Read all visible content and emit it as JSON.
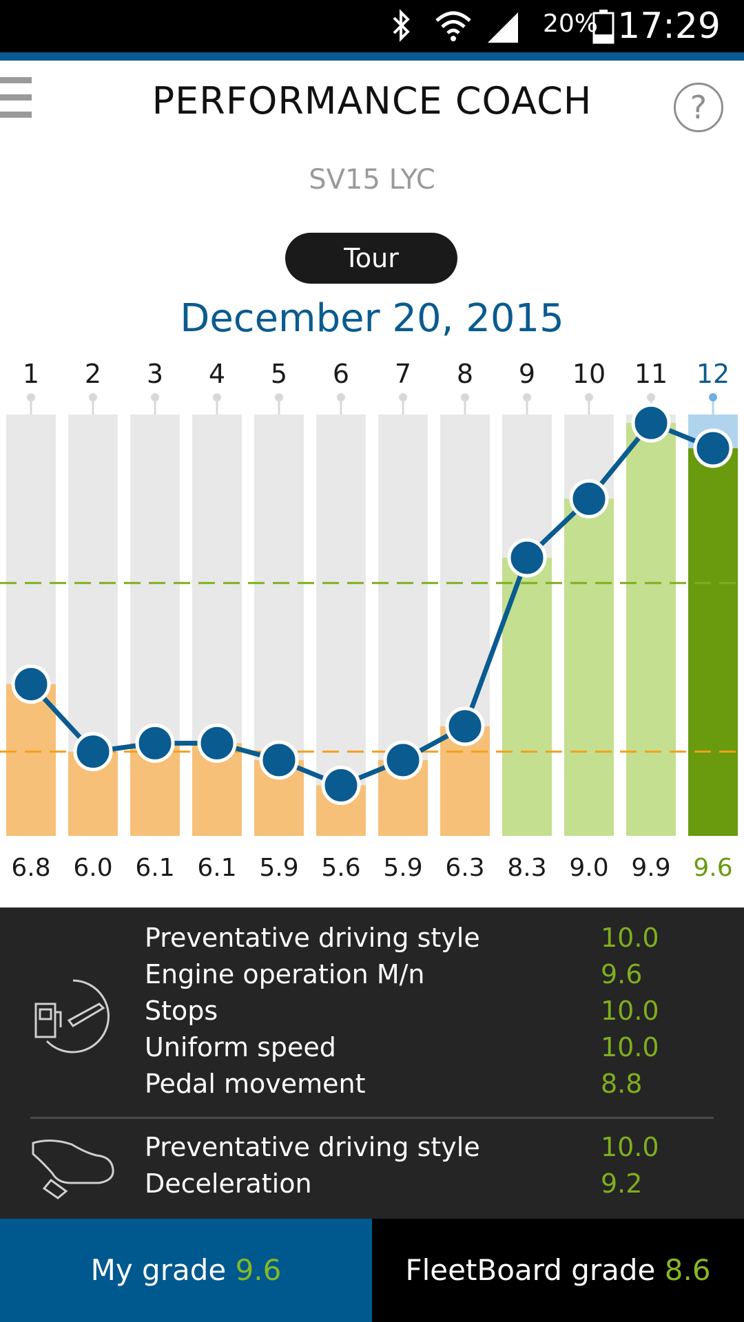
{
  "status_bar": {
    "battery": "20%",
    "time": "17:29",
    "icons": [
      "bluetooth-icon",
      "wifi-icon",
      "signal-icon",
      "battery-icon"
    ]
  },
  "header": {
    "title": "PERFORMANCE COACH",
    "menu_icon": "hamburger-menu-icon",
    "help_icon": "help-icon",
    "help_glyph": "?"
  },
  "vehicle": "SV15 LYC",
  "tour_button": "Tour",
  "date": "December 20, 2015",
  "chart_data": {
    "type": "bar",
    "categories": [
      "1",
      "2",
      "3",
      "4",
      "5",
      "6",
      "7",
      "8",
      "9",
      "10",
      "11",
      "12"
    ],
    "values": [
      6.8,
      6.0,
      6.1,
      6.1,
      5.9,
      5.6,
      5.9,
      6.3,
      8.3,
      9.0,
      9.9,
      9.6
    ],
    "value_labels": [
      "6.8",
      "6.0",
      "6.1",
      "6.1",
      "5.9",
      "5.6",
      "5.9",
      "6.3",
      "8.3",
      "9.0",
      "9.9",
      "9.6"
    ],
    "line_overlay": true,
    "selected_index": 11,
    "reference_lines": [
      8.0,
      6.0
    ],
    "ylim": [
      5.0,
      10.0
    ],
    "colors": {
      "background_bar": "#e8e8e8",
      "low_bar": "#f6c078",
      "high_bar": "#c4df8f",
      "selected_bar": "#6a9a0e",
      "selected_background": "#b0d4ee",
      "line": "#0a5b8f",
      "upper_reference": "#7fae1e",
      "lower_reference": "#f3a01c",
      "selected_label": "#6a9a0e"
    }
  },
  "details": {
    "group1_icon": "fuel-gauge-icon",
    "group1": [
      {
        "label": "Preventative driving style",
        "value": "10.0"
      },
      {
        "label": "Engine operation M/n",
        "value": "9.6"
      },
      {
        "label": "Stops",
        "value": "10.0"
      },
      {
        "label": "Uniform speed",
        "value": "10.0"
      },
      {
        "label": "Pedal movement",
        "value": "8.8"
      }
    ],
    "group2_icon": "brake-pedal-shoe-icon",
    "group2": [
      {
        "label": "Preventative driving style",
        "value": "10.0"
      },
      {
        "label": "Deceleration",
        "value": "9.2"
      }
    ]
  },
  "bottom": {
    "my_grade_label": "My grade",
    "my_grade_value": "9.6",
    "fleet_grade_label": "FleetBoard grade",
    "fleet_grade_value": "8.6"
  }
}
